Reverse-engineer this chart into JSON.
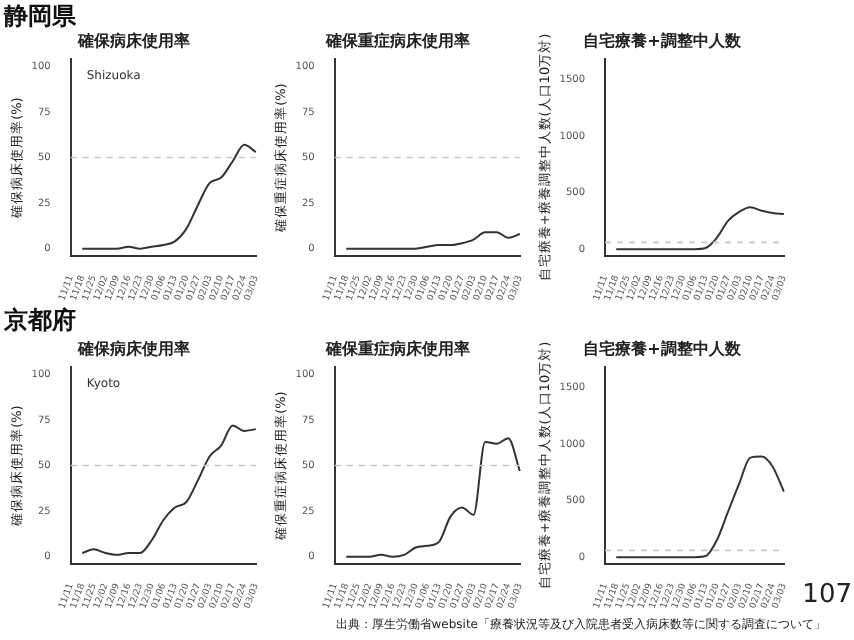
{
  "chart_data": [
    {
      "type": "line",
      "title": "確保病床使用率",
      "ylabel": "確保病床使用率(%)",
      "annotations": [
        "静岡県",
        "Shizuoka"
      ],
      "categories": [
        "11/11",
        "11/18",
        "11/25",
        "12/02",
        "12/09",
        "12/16",
        "12/23",
        "12/30",
        "01/06",
        "01/13",
        "01/20",
        "01/27",
        "02/03",
        "02/10",
        "02/17",
        "02/24",
        "03/03"
      ],
      "series": [
        {
          "color": "#333333",
          "values": [
            null,
            0,
            0,
            0,
            0,
            1,
            0,
            1,
            2,
            4,
            11,
            24,
            36,
            39,
            48,
            57,
            53
          ]
        }
      ],
      "ylim": [
        -4,
        104
      ],
      "yticks": [
        0,
        25,
        50,
        75,
        100
      ],
      "ref_lines": [
        {
          "axis": "y",
          "value": 50,
          "color": "#c8c8c8",
          "line_style": "dashed"
        }
      ],
      "grid": false,
      "legend": false
    },
    {
      "type": "line",
      "title": "確保重症病床使用率",
      "ylabel": "確保重症病床使用率(%)",
      "categories": [
        "11/11",
        "11/18",
        "11/25",
        "12/02",
        "12/09",
        "12/16",
        "12/23",
        "12/30",
        "01/06",
        "01/13",
        "01/20",
        "01/27",
        "02/03",
        "02/10",
        "02/17",
        "02/24",
        "03/03"
      ],
      "series": [
        {
          "color": "#333333",
          "values": [
            null,
            0,
            0,
            0,
            0,
            0,
            0,
            0,
            1,
            2,
            2,
            3,
            5,
            9,
            9,
            6,
            8
          ]
        }
      ],
      "ylim": [
        -4,
        104
      ],
      "yticks": [
        0,
        25,
        50,
        75,
        100
      ],
      "ref_lines": [
        {
          "axis": "y",
          "value": 50,
          "color": "#c8c8c8",
          "line_style": "dashed"
        }
      ],
      "grid": false,
      "legend": false
    },
    {
      "type": "line",
      "title": "自宅療養+調整中人数",
      "ylabel": "自宅療養+療養調整中人数(人口10万対)",
      "categories": [
        "11/11",
        "11/18",
        "11/25",
        "12/02",
        "12/09",
        "12/16",
        "12/23",
        "12/30",
        "01/06",
        "01/13",
        "01/20",
        "01/27",
        "02/03",
        "02/10",
        "02/17",
        "02/24",
        "03/03"
      ],
      "series": [
        {
          "color": "#333333",
          "values": [
            null,
            0,
            0,
            0,
            0,
            0,
            0,
            0,
            0,
            10,
            100,
            250,
            330,
            370,
            340,
            320,
            310
          ]
        }
      ],
      "ylim": [
        -60,
        1680
      ],
      "yticks": [
        0,
        500,
        1000,
        1500
      ],
      "ref_lines": [
        {
          "axis": "y",
          "value": 60,
          "color": "#c8c8c8",
          "line_style": "dashed"
        }
      ],
      "grid": false,
      "legend": false
    },
    {
      "type": "line",
      "title": "確保病床使用率",
      "ylabel": "確保病床使用率(%)",
      "annotations": [
        "京都府",
        "Kyoto"
      ],
      "categories": [
        "11/11",
        "11/18",
        "11/25",
        "12/02",
        "12/09",
        "12/16",
        "12/23",
        "12/30",
        "01/06",
        "01/13",
        "01/20",
        "01/27",
        "02/03",
        "02/10",
        "02/17",
        "02/24",
        "03/03"
      ],
      "series": [
        {
          "color": "#333333",
          "values": [
            null,
            2,
            4,
            2,
            1,
            2,
            2,
            9,
            20,
            27,
            30,
            42,
            55,
            61,
            72,
            69,
            70
          ]
        }
      ],
      "ylim": [
        -4,
        104
      ],
      "yticks": [
        0,
        25,
        50,
        75,
        100
      ],
      "ref_lines": [
        {
          "axis": "y",
          "value": 50,
          "color": "#c8c8c8",
          "line_style": "dashed"
        }
      ],
      "grid": false,
      "legend": false
    },
    {
      "type": "line",
      "title": "確保重症病床使用率",
      "ylabel": "確保重症病床使用率(%)",
      "categories": [
        "11/11",
        "11/18",
        "11/25",
        "12/02",
        "12/09",
        "12/16",
        "12/23",
        "12/30",
        "01/06",
        "01/13",
        "01/20",
        "01/27",
        "02/03",
        "02/10",
        "02/17",
        "02/24",
        "03/03"
      ],
      "series": [
        {
          "color": "#333333",
          "values": [
            null,
            0,
            0,
            0,
            1,
            0,
            1,
            5,
            6,
            8,
            22,
            27,
            23,
            63,
            62,
            65,
            47
          ]
        }
      ],
      "ylim": [
        -4,
        104
      ],
      "yticks": [
        0,
        25,
        50,
        75,
        100
      ],
      "ref_lines": [
        {
          "axis": "y",
          "value": 50,
          "color": "#c8c8c8",
          "line_style": "dashed"
        }
      ],
      "grid": false,
      "legend": false
    },
    {
      "type": "line",
      "title": "自宅療養+調整中人数",
      "ylabel": "自宅療養+療養調整中人数(人口10万対)",
      "annotations": [
        "出典：厚生労働省website「療養状況等及び入院患者受入病床数等に関する調査について」",
        "107"
      ],
      "categories": [
        "11/11",
        "11/18",
        "11/25",
        "12/02",
        "12/09",
        "12/16",
        "12/23",
        "12/30",
        "01/06",
        "01/13",
        "01/20",
        "01/27",
        "02/03",
        "02/10",
        "02/17",
        "02/24",
        "03/03"
      ],
      "series": [
        {
          "color": "#333333",
          "values": [
            null,
            0,
            0,
            0,
            0,
            0,
            0,
            0,
            0,
            10,
            150,
            400,
            650,
            880,
            890,
            800,
            580
          ]
        }
      ],
      "ylim": [
        -60,
        1680
      ],
      "yticks": [
        0,
        500,
        1000,
        1500
      ],
      "ref_lines": [
        {
          "axis": "y",
          "value": 60,
          "color": "#c8c8c8",
          "line_style": "dashed"
        }
      ],
      "grid": false,
      "legend": false
    }
  ]
}
